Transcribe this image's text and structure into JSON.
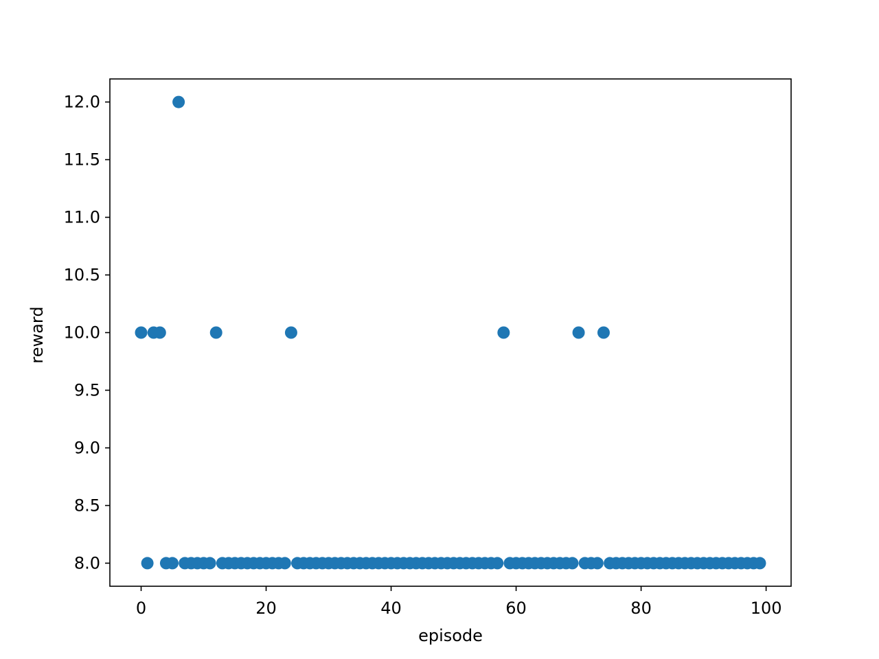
{
  "chart_data": {
    "type": "scatter",
    "title": "",
    "xlabel": "episode",
    "ylabel": "reward",
    "xlim": [
      -5,
      104
    ],
    "ylim": [
      7.8,
      12.2
    ],
    "xticks": [
      0,
      20,
      40,
      60,
      80,
      100
    ],
    "xtick_labels": [
      "0",
      "20",
      "40",
      "60",
      "80",
      "100"
    ],
    "yticks": [
      8.0,
      8.5,
      9.0,
      9.5,
      10.0,
      10.5,
      11.0,
      11.5,
      12.0
    ],
    "ytick_labels": [
      "8.0",
      "8.5",
      "9.0",
      "9.5",
      "10.0",
      "10.5",
      "11.0",
      "11.5",
      "12.0"
    ],
    "grid": false,
    "legend": "none",
    "marker_color": "#1f77b4",
    "series": [
      {
        "name": "reward",
        "x": [
          0,
          1,
          2,
          3,
          4,
          5,
          6,
          7,
          8,
          9,
          10,
          11,
          12,
          13,
          14,
          15,
          16,
          17,
          18,
          19,
          20,
          21,
          22,
          23,
          24,
          25,
          26,
          27,
          28,
          29,
          30,
          31,
          32,
          33,
          34,
          35,
          36,
          37,
          38,
          39,
          40,
          41,
          42,
          43,
          44,
          45,
          46,
          47,
          48,
          49,
          50,
          51,
          52,
          53,
          54,
          55,
          56,
          57,
          58,
          59,
          60,
          61,
          62,
          63,
          64,
          65,
          66,
          67,
          68,
          69,
          70,
          71,
          72,
          73,
          74,
          75,
          76,
          77,
          78,
          79,
          80,
          81,
          82,
          83,
          84,
          85,
          86,
          87,
          88,
          89,
          90,
          91,
          92,
          93,
          94,
          95,
          96,
          97,
          98,
          99
        ],
        "y": [
          10,
          8,
          10,
          10,
          8,
          8,
          12,
          8,
          8,
          8,
          8,
          8,
          10,
          8,
          8,
          8,
          8,
          8,
          8,
          8,
          8,
          8,
          8,
          8,
          10,
          8,
          8,
          8,
          8,
          8,
          8,
          8,
          8,
          8,
          8,
          8,
          8,
          8,
          8,
          8,
          8,
          8,
          8,
          8,
          8,
          8,
          8,
          8,
          8,
          8,
          8,
          8,
          8,
          8,
          8,
          8,
          8,
          8,
          10,
          8,
          8,
          8,
          8,
          8,
          8,
          8,
          8,
          8,
          8,
          8,
          10,
          8,
          8,
          8,
          10,
          8,
          8,
          8,
          8,
          8,
          8,
          8,
          8,
          8,
          8,
          8,
          8,
          8,
          8,
          8,
          8,
          8,
          8,
          8,
          8,
          8,
          8,
          8,
          8,
          8
        ]
      }
    ]
  }
}
